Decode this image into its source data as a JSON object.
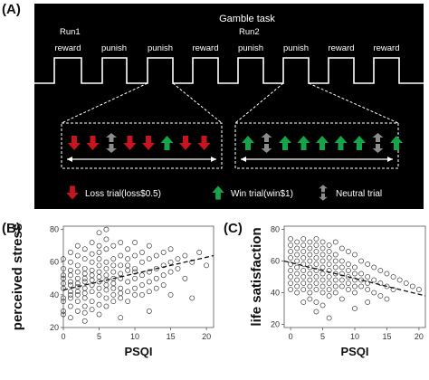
{
  "panels": {
    "a": "(A)",
    "b": "(B)",
    "c": "(C)"
  },
  "task": {
    "title": "Gamble task",
    "run1": "Run1",
    "run2": "Run2",
    "blocks": [
      "reward",
      "punish",
      "punish",
      "reward",
      "punish",
      "punish",
      "reward",
      "reward"
    ],
    "run1_arrows": [
      "loss",
      "loss",
      "neutral",
      "loss",
      "loss",
      "win",
      "loss",
      "loss"
    ],
    "run2_arrows": [
      "win",
      "neutral",
      "win",
      "win",
      "win",
      "win",
      "win",
      "neutral",
      "win"
    ],
    "colors": {
      "loss": "#c8141e",
      "win": "#16a34a",
      "neutral": "#8c8c8c"
    }
  },
  "legend": {
    "loss": "Loss trial(loss$0.5)",
    "win": "Win trial(win$1)",
    "neutral": "Neutral trial"
  },
  "chart_data": [
    {
      "type": "scatter",
      "xlabel": "PSQI",
      "ylabel": "perceived stress",
      "xlim": [
        0,
        21
      ],
      "ylim": [
        20,
        82
      ],
      "xticks": [
        0,
        5,
        10,
        15,
        20
      ],
      "yticks": [
        20,
        40,
        60,
        80
      ],
      "trend_line": {
        "x": [
          0,
          21
        ],
        "y": [
          43,
          64
        ]
      },
      "points": [
        [
          0,
          44
        ],
        [
          0,
          50
        ],
        [
          0,
          38
        ],
        [
          0,
          56
        ],
        [
          0,
          30
        ],
        [
          0,
          62
        ],
        [
          0,
          47
        ],
        [
          0,
          36
        ],
        [
          0,
          28
        ],
        [
          0,
          52
        ],
        [
          1,
          40
        ],
        [
          1,
          46
        ],
        [
          1,
          55
        ],
        [
          1,
          33
        ],
        [
          1,
          60
        ],
        [
          1,
          48
        ],
        [
          1,
          26
        ],
        [
          1,
          66
        ],
        [
          1,
          42
        ],
        [
          1,
          38
        ],
        [
          1,
          52
        ],
        [
          2,
          45
        ],
        [
          2,
          50
        ],
        [
          2,
          36
        ],
        [
          2,
          58
        ],
        [
          2,
          42
        ],
        [
          2,
          64
        ],
        [
          2,
          30
        ],
        [
          2,
          47
        ],
        [
          2,
          54
        ],
        [
          2,
          40
        ],
        [
          2,
          70
        ],
        [
          3,
          44
        ],
        [
          3,
          50
        ],
        [
          3,
          38
        ],
        [
          3,
          56
        ],
        [
          3,
          62
        ],
        [
          3,
          33
        ],
        [
          3,
          48
        ],
        [
          3,
          68
        ],
        [
          3,
          41
        ],
        [
          3,
          29
        ],
        [
          3,
          53
        ],
        [
          4,
          46
        ],
        [
          4,
          52
        ],
        [
          4,
          36
        ],
        [
          4,
          60
        ],
        [
          4,
          42
        ],
        [
          4,
          72
        ],
        [
          4,
          31
        ],
        [
          4,
          49
        ],
        [
          4,
          65
        ],
        [
          4,
          55
        ],
        [
          5,
          48
        ],
        [
          5,
          54
        ],
        [
          5,
          40
        ],
        [
          5,
          62
        ],
        [
          5,
          44
        ],
        [
          5,
          34
        ],
        [
          5,
          58
        ],
        [
          5,
          70
        ],
        [
          5,
          51
        ],
        [
          5,
          28
        ],
        [
          5,
          66
        ],
        [
          6,
          46
        ],
        [
          6,
          52
        ],
        [
          6,
          38
        ],
        [
          6,
          60
        ],
        [
          6,
          43
        ],
        [
          6,
          68
        ],
        [
          6,
          33
        ],
        [
          6,
          56
        ],
        [
          6,
          74
        ],
        [
          6,
          49
        ],
        [
          7,
          47
        ],
        [
          7,
          54
        ],
        [
          7,
          40
        ],
        [
          7,
          62
        ],
        [
          7,
          36
        ],
        [
          7,
          58
        ],
        [
          7,
          70
        ],
        [
          7,
          50
        ],
        [
          7,
          44
        ],
        [
          8,
          50
        ],
        [
          8,
          44
        ],
        [
          8,
          58
        ],
        [
          8,
          38
        ],
        [
          8,
          64
        ],
        [
          8,
          53
        ],
        [
          8,
          72
        ],
        [
          8,
          41
        ],
        [
          9,
          48
        ],
        [
          9,
          55
        ],
        [
          9,
          42
        ],
        [
          9,
          62
        ],
        [
          9,
          68
        ],
        [
          9,
          36
        ],
        [
          9,
          58
        ],
        [
          10,
          50
        ],
        [
          10,
          56
        ],
        [
          10,
          44
        ],
        [
          10,
          64
        ],
        [
          10,
          40
        ],
        [
          10,
          72
        ],
        [
          10,
          54
        ],
        [
          11,
          52
        ],
        [
          11,
          46
        ],
        [
          11,
          60
        ],
        [
          11,
          66
        ],
        [
          11,
          40
        ],
        [
          12,
          54
        ],
        [
          12,
          48
        ],
        [
          12,
          62
        ],
        [
          12,
          70
        ],
        [
          12,
          42
        ],
        [
          13,
          56
        ],
        [
          13,
          50
        ],
        [
          13,
          64
        ],
        [
          13,
          44
        ],
        [
          14,
          58
        ],
        [
          14,
          52
        ],
        [
          14,
          66
        ],
        [
          14,
          46
        ],
        [
          15,
          60
        ],
        [
          15,
          54
        ],
        [
          15,
          68
        ],
        [
          15,
          40
        ],
        [
          16,
          62
        ],
        [
          16,
          56
        ],
        [
          17,
          64
        ],
        [
          17,
          50
        ],
        [
          18,
          60
        ],
        [
          19,
          66
        ],
        [
          20,
          58
        ],
        [
          6,
          80
        ],
        [
          5,
          78
        ],
        [
          3,
          24
        ],
        [
          12,
          30
        ],
        [
          8,
          26
        ],
        [
          18,
          38
        ]
      ]
    },
    {
      "type": "scatter",
      "xlabel": "PSQI",
      "ylabel": "life satisfaction",
      "xlim": [
        -1,
        21
      ],
      "ylim": [
        18,
        82
      ],
      "xticks": [
        0,
        5,
        10,
        15,
        20
      ],
      "yticks": [
        20,
        40,
        60,
        80
      ],
      "trend_line": {
        "x": [
          -1,
          21
        ],
        "y": [
          60,
          38
        ]
      },
      "points": [
        [
          0,
          74
        ],
        [
          0,
          66
        ],
        [
          0,
          58
        ],
        [
          0,
          50
        ],
        [
          0,
          42
        ],
        [
          0,
          70
        ],
        [
          0,
          62
        ],
        [
          0,
          54
        ],
        [
          0,
          46
        ],
        [
          1,
          72
        ],
        [
          1,
          64
        ],
        [
          1,
          56
        ],
        [
          1,
          48
        ],
        [
          1,
          40
        ],
        [
          1,
          68
        ],
        [
          1,
          60
        ],
        [
          1,
          52
        ],
        [
          1,
          44
        ],
        [
          2,
          74
        ],
        [
          2,
          66
        ],
        [
          2,
          58
        ],
        [
          2,
          50
        ],
        [
          2,
          42
        ],
        [
          2,
          34
        ],
        [
          2,
          70
        ],
        [
          2,
          62
        ],
        [
          2,
          54
        ],
        [
          2,
          46
        ],
        [
          3,
          72
        ],
        [
          3,
          64
        ],
        [
          3,
          56
        ],
        [
          3,
          48
        ],
        [
          3,
          40
        ],
        [
          3,
          68
        ],
        [
          3,
          60
        ],
        [
          3,
          52
        ],
        [
          3,
          44
        ],
        [
          3,
          36
        ],
        [
          4,
          74
        ],
        [
          4,
          66
        ],
        [
          4,
          58
        ],
        [
          4,
          50
        ],
        [
          4,
          42
        ],
        [
          4,
          34
        ],
        [
          4,
          70
        ],
        [
          4,
          62
        ],
        [
          4,
          54
        ],
        [
          4,
          46
        ],
        [
          5,
          72
        ],
        [
          5,
          64
        ],
        [
          5,
          56
        ],
        [
          5,
          48
        ],
        [
          5,
          40
        ],
        [
          5,
          32
        ],
        [
          5,
          68
        ],
        [
          5,
          60
        ],
        [
          5,
          52
        ],
        [
          5,
          44
        ],
        [
          6,
          70
        ],
        [
          6,
          62
        ],
        [
          6,
          54
        ],
        [
          6,
          46
        ],
        [
          6,
          38
        ],
        [
          6,
          66
        ],
        [
          6,
          58
        ],
        [
          6,
          50
        ],
        [
          6,
          42
        ],
        [
          7,
          72
        ],
        [
          7,
          64
        ],
        [
          7,
          56
        ],
        [
          7,
          48
        ],
        [
          7,
          40
        ],
        [
          7,
          60
        ],
        [
          7,
          52
        ],
        [
          7,
          44
        ],
        [
          8,
          68
        ],
        [
          8,
          60
        ],
        [
          8,
          52
        ],
        [
          8,
          44
        ],
        [
          8,
          36
        ],
        [
          8,
          56
        ],
        [
          8,
          48
        ],
        [
          9,
          66
        ],
        [
          9,
          58
        ],
        [
          9,
          50
        ],
        [
          9,
          42
        ],
        [
          9,
          54
        ],
        [
          9,
          46
        ],
        [
          10,
          64
        ],
        [
          10,
          56
        ],
        [
          10,
          48
        ],
        [
          10,
          40
        ],
        [
          10,
          52
        ],
        [
          10,
          44
        ],
        [
          10,
          30
        ],
        [
          11,
          60
        ],
        [
          11,
          52
        ],
        [
          11,
          44
        ],
        [
          11,
          48
        ],
        [
          12,
          58
        ],
        [
          12,
          50
        ],
        [
          12,
          42
        ],
        [
          12,
          46
        ],
        [
          13,
          56
        ],
        [
          13,
          48
        ],
        [
          13,
          40
        ],
        [
          14,
          54
        ],
        [
          14,
          46
        ],
        [
          14,
          38
        ],
        [
          15,
          52
        ],
        [
          15,
          44
        ],
        [
          16,
          50
        ],
        [
          16,
          42
        ],
        [
          17,
          48
        ],
        [
          18,
          46
        ],
        [
          19,
          44
        ],
        [
          20,
          42
        ],
        [
          6,
          24
        ],
        [
          4,
          28
        ],
        [
          15,
          36
        ],
        [
          12,
          34
        ]
      ]
    }
  ]
}
